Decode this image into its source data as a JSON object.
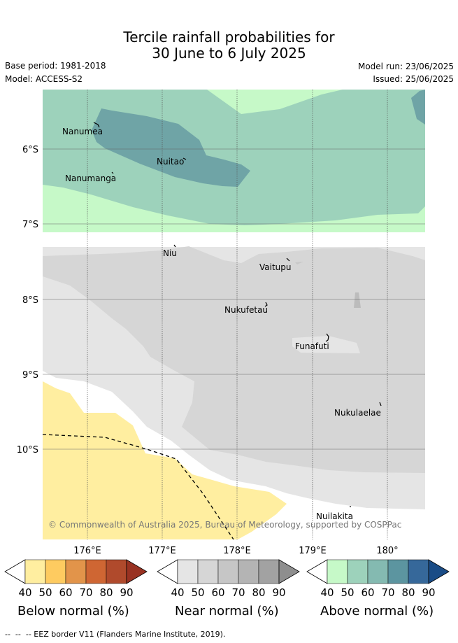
{
  "title": {
    "line1": "Tercile rainfall probabilities for",
    "line2": "30 June to 6 July 2025"
  },
  "meta": {
    "base_period": "Base period: 1981-2018",
    "model": "Model: ACCESS-S2",
    "model_run": "Model run: 23/06/2025",
    "issued": "Issued: 25/06/2025"
  },
  "map": {
    "lat_ticks": [
      "6°S",
      "7°S",
      "8°S",
      "9°S",
      "10°S"
    ],
    "lon_ticks": [
      "176°E",
      "177°E",
      "178°E",
      "179°E",
      "180°"
    ],
    "places": {
      "nanumea": "Nanumea",
      "nuitao": "Nuitao",
      "nanumanga": "Nanumanga",
      "niu": "Niu",
      "vaitupu": "Vaitupu",
      "nukufetau": "Nukufetau",
      "funafuti": "Funafuti",
      "nukulaelae": "Nukulaelae",
      "nuilakita": "Nuilakita"
    },
    "copyright": "© Commonwealth of Australia 2025, Bureau of Meteorology, supported by COSPPac"
  },
  "colorbars": {
    "below": {
      "title": "Below normal (%)",
      "ticks": [
        "40",
        "50",
        "60",
        "70",
        "80",
        "90"
      ],
      "colors": [
        "#ffeea0",
        "#fecb60",
        "#e2944a",
        "#cf6633",
        "#b04a2c",
        "#993222"
      ]
    },
    "near": {
      "title": "Near normal (%)",
      "ticks": [
        "40",
        "50",
        "60",
        "70",
        "80",
        "90"
      ],
      "colors": [
        "#e5e5e5",
        "#d6d6d6",
        "#c6c6c6",
        "#b4b4b4",
        "#a2a2a2",
        "#8e8e8e"
      ]
    },
    "above": {
      "title": "Above normal (%)",
      "ticks": [
        "40",
        "50",
        "60",
        "70",
        "80",
        "90"
      ],
      "colors": [
        "#c6f9c8",
        "#9dd2bb",
        "#84bab1",
        "#5c95a0",
        "#36689a",
        "#1a4c86"
      ]
    }
  },
  "footnote": "--  --  -- EEZ border V11 (Flanders Marine Institute, 2019)."
}
